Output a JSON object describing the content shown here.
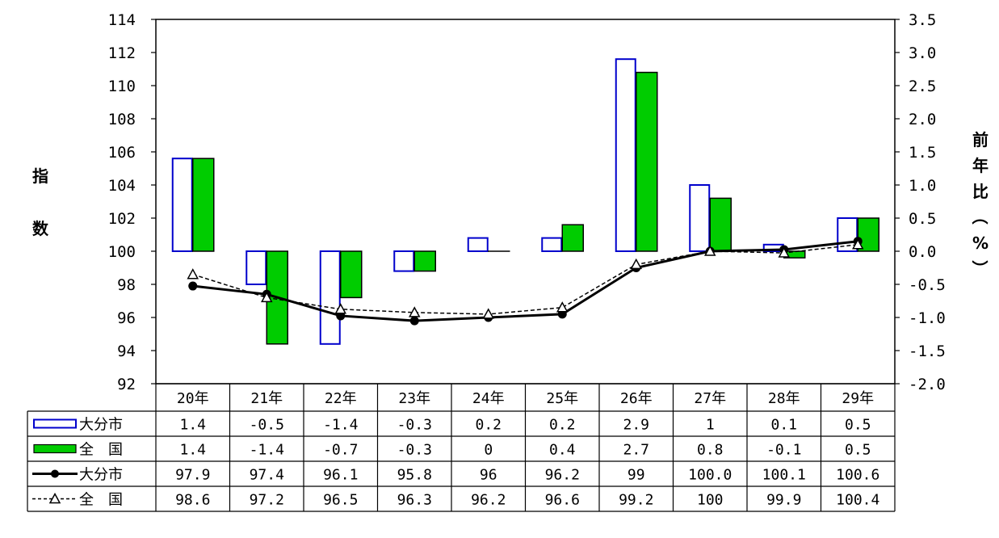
{
  "chart_data": {
    "type": "bar",
    "categories": [
      "20年",
      "21年",
      "22年",
      "23年",
      "24年",
      "25年",
      "26年",
      "27年",
      "28年",
      "29年"
    ],
    "y_left_label": "指数",
    "y_right_label": "前年比（%）",
    "ylim_left": [
      92,
      114
    ],
    "ylim_right": [
      -2.0,
      3.5
    ],
    "y_left_ticks": [
      "92",
      "94",
      "96",
      "98",
      "100",
      "102",
      "104",
      "106",
      "108",
      "110",
      "112",
      "114"
    ],
    "y_right_ticks": [
      "-2.0",
      "-1.5",
      "-1.0",
      "-0.5",
      "0.0",
      "0.5",
      "1.0",
      "1.5",
      "2.0",
      "2.5",
      "3.0",
      "3.5"
    ],
    "series": [
      {
        "name": "大分市",
        "kind": "bar",
        "axis": "right",
        "style": "outline",
        "color": "#0000CC",
        "values": [
          1.4,
          -0.5,
          -1.4,
          -0.3,
          0.2,
          0.2,
          2.9,
          1,
          0.1,
          0.5
        ],
        "labels": [
          "1.4",
          "-0.5",
          "-1.4",
          "-0.3",
          "0.2",
          "0.2",
          "2.9",
          "1",
          "0.1",
          "0.5"
        ]
      },
      {
        "name": "全　国",
        "kind": "bar",
        "axis": "right",
        "style": "filled",
        "color": "#00CC00",
        "values": [
          1.4,
          -1.4,
          -0.7,
          -0.3,
          0,
          0.4,
          2.7,
          0.8,
          -0.1,
          0.5
        ],
        "labels": [
          "1.4",
          "-1.4",
          "-0.7",
          "-0.3",
          "0",
          "0.4",
          "2.7",
          "0.8",
          "-0.1",
          "0.5"
        ]
      },
      {
        "name": "大分市",
        "kind": "line",
        "axis": "left",
        "style": "solid-dot",
        "color": "#000000",
        "values": [
          97.9,
          97.4,
          96.1,
          95.8,
          96,
          96.2,
          99,
          100.0,
          100.1,
          100.6
        ],
        "labels": [
          "97.9",
          "97.4",
          "96.1",
          "95.8",
          "96",
          "96.2",
          "99",
          "100.0",
          "100.1",
          "100.6"
        ]
      },
      {
        "name": "全　国",
        "kind": "line",
        "axis": "left",
        "style": "dashed-triangle",
        "color": "#000000",
        "values": [
          98.6,
          97.2,
          96.5,
          96.3,
          96.2,
          96.6,
          99.2,
          100,
          99.9,
          100.4
        ],
        "labels": [
          "98.6",
          "97.2",
          "96.5",
          "96.3",
          "96.2",
          "96.6",
          "99.2",
          "100",
          "99.9",
          "100.4"
        ]
      }
    ]
  }
}
